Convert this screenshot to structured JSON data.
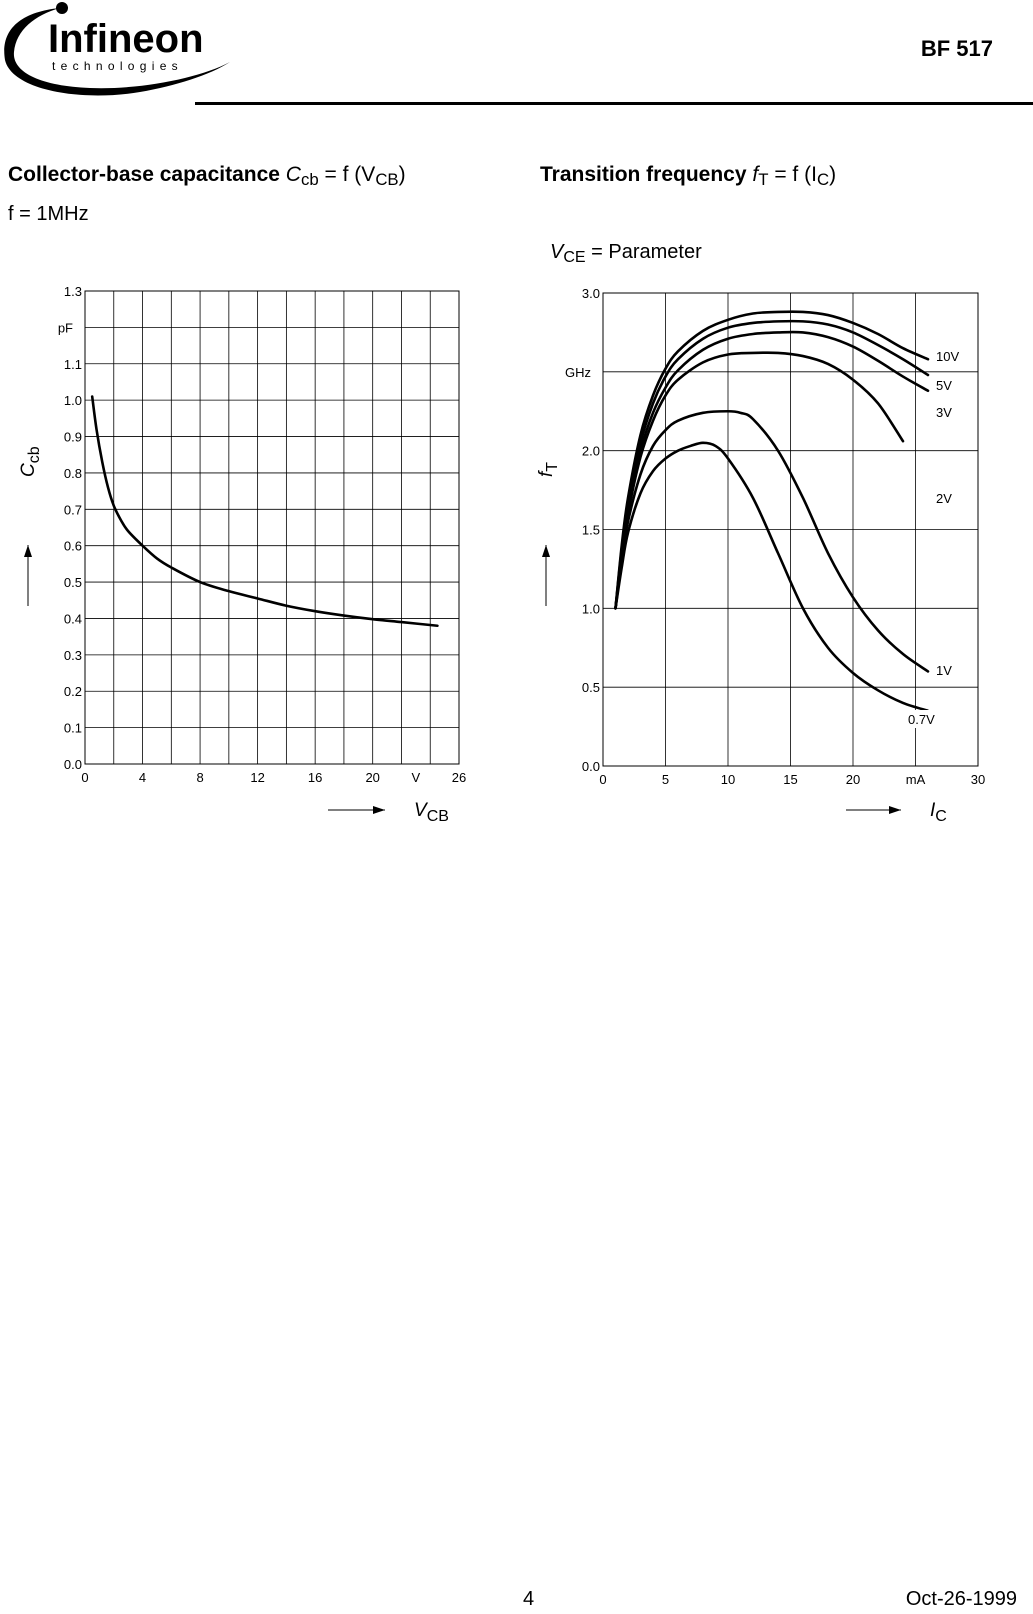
{
  "header": {
    "logo_name": "Infineon",
    "logo_tagline": "technologies",
    "part_number": "BF 517"
  },
  "left_panel": {
    "title_bold": "Collector-base capacitance",
    "title_formula_prefix": "C",
    "title_formula_sub": "cb",
    "title_formula_mid": " = f (V",
    "title_formula_sub2": "CB",
    "title_formula_suffix": ")",
    "condition": "f = 1MHz"
  },
  "right_panel": {
    "title_bold": "Transition frequency",
    "title_formula_prefix": "f",
    "title_formula_sub": "T",
    "title_formula_mid": " = f (I",
    "title_formula_sub2": "C",
    "title_formula_suffix": ")",
    "condition_var": "V",
    "condition_sub": "CE",
    "condition_text": " = Parameter"
  },
  "chart_data": [
    {
      "type": "line",
      "xlabel": "VCB",
      "xunit": "V",
      "ylabel": "Ccb",
      "yunit": "pF",
      "xlim": [
        0,
        26
      ],
      "ylim": [
        0,
        1.3
      ],
      "xticks": [
        0,
        4,
        8,
        12,
        16,
        20,
        26
      ],
      "yticks": [
        0.0,
        0.1,
        0.2,
        0.3,
        0.4,
        0.5,
        0.6,
        0.7,
        0.8,
        0.9,
        1.0,
        1.1,
        1.3
      ],
      "grid": true,
      "series": [
        {
          "x": [
            0.5,
            0.8,
            1.2,
            1.6,
            2,
            2.5,
            3,
            4,
            5,
            6,
            8,
            10,
            12,
            14,
            16,
            18,
            20,
            22,
            24.5
          ],
          "y": [
            1.01,
            0.92,
            0.83,
            0.76,
            0.71,
            0.67,
            0.64,
            0.6,
            0.565,
            0.54,
            0.5,
            0.475,
            0.455,
            0.435,
            0.42,
            0.408,
            0.398,
            0.39,
            0.38
          ]
        }
      ]
    },
    {
      "type": "line",
      "xlabel": "IC",
      "xunit": "mA",
      "ylabel": "fT",
      "yunit": "GHz",
      "xlim": [
        0,
        30
      ],
      "ylim": [
        0,
        3.0
      ],
      "xticks": [
        0,
        5,
        10,
        15,
        20,
        30
      ],
      "yticks": [
        0.0,
        0.5,
        1.0,
        1.5,
        2.0,
        3.0
      ],
      "grid": true,
      "series": [
        {
          "name": "10V",
          "x": [
            1,
            1.5,
            2,
            3,
            4,
            5,
            6,
            8,
            10,
            12,
            14,
            16,
            18,
            20,
            22,
            24,
            26
          ],
          "y": [
            1.0,
            1.4,
            1.7,
            2.1,
            2.35,
            2.52,
            2.63,
            2.76,
            2.83,
            2.87,
            2.88,
            2.88,
            2.86,
            2.81,
            2.74,
            2.65,
            2.58
          ]
        },
        {
          "name": "5V",
          "x": [
            1,
            1.5,
            2,
            3,
            4,
            5,
            6,
            8,
            10,
            12,
            14,
            16,
            18,
            20,
            22,
            24,
            26
          ],
          "y": [
            1.0,
            1.38,
            1.67,
            2.05,
            2.3,
            2.47,
            2.58,
            2.71,
            2.78,
            2.81,
            2.82,
            2.82,
            2.8,
            2.75,
            2.67,
            2.58,
            2.48
          ]
        },
        {
          "name": "3V",
          "x": [
            1,
            1.5,
            2,
            3,
            4,
            5,
            6,
            8,
            10,
            12,
            14,
            16,
            18,
            20,
            22,
            24,
            26
          ],
          "y": [
            1.0,
            1.35,
            1.63,
            2.0,
            2.24,
            2.4,
            2.51,
            2.64,
            2.71,
            2.74,
            2.75,
            2.75,
            2.72,
            2.66,
            2.57,
            2.47,
            2.38
          ]
        },
        {
          "name": "2V",
          "x": [
            1,
            1.5,
            2,
            3,
            4,
            5,
            6,
            8,
            10,
            12,
            14,
            16,
            18,
            20,
            22,
            24
          ],
          "y": [
            1.0,
            1.33,
            1.6,
            1.96,
            2.19,
            2.35,
            2.45,
            2.56,
            2.61,
            2.62,
            2.62,
            2.6,
            2.55,
            2.45,
            2.3,
            2.06
          ]
        },
        {
          "name": "1V",
          "x": [
            1,
            1.5,
            2,
            3,
            4,
            5,
            6,
            8,
            10,
            11,
            12,
            14,
            16,
            18,
            20,
            22,
            24,
            26
          ],
          "y": [
            1.0,
            1.3,
            1.55,
            1.85,
            2.03,
            2.13,
            2.19,
            2.24,
            2.25,
            2.24,
            2.2,
            2.0,
            1.7,
            1.35,
            1.07,
            0.86,
            0.71,
            0.6
          ]
        },
        {
          "name": "0.7V",
          "x": [
            1,
            1.5,
            2,
            3,
            4,
            5,
            6,
            7,
            8,
            9,
            10,
            12,
            14,
            16,
            18,
            20,
            22,
            24,
            26
          ],
          "y": [
            1.0,
            1.26,
            1.48,
            1.73,
            1.87,
            1.95,
            2.0,
            2.03,
            2.05,
            2.03,
            1.95,
            1.7,
            1.35,
            1.0,
            0.75,
            0.59,
            0.48,
            0.4,
            0.35
          ]
        }
      ]
    }
  ],
  "footer": {
    "page": "4",
    "date": "Oct-26-1999"
  }
}
